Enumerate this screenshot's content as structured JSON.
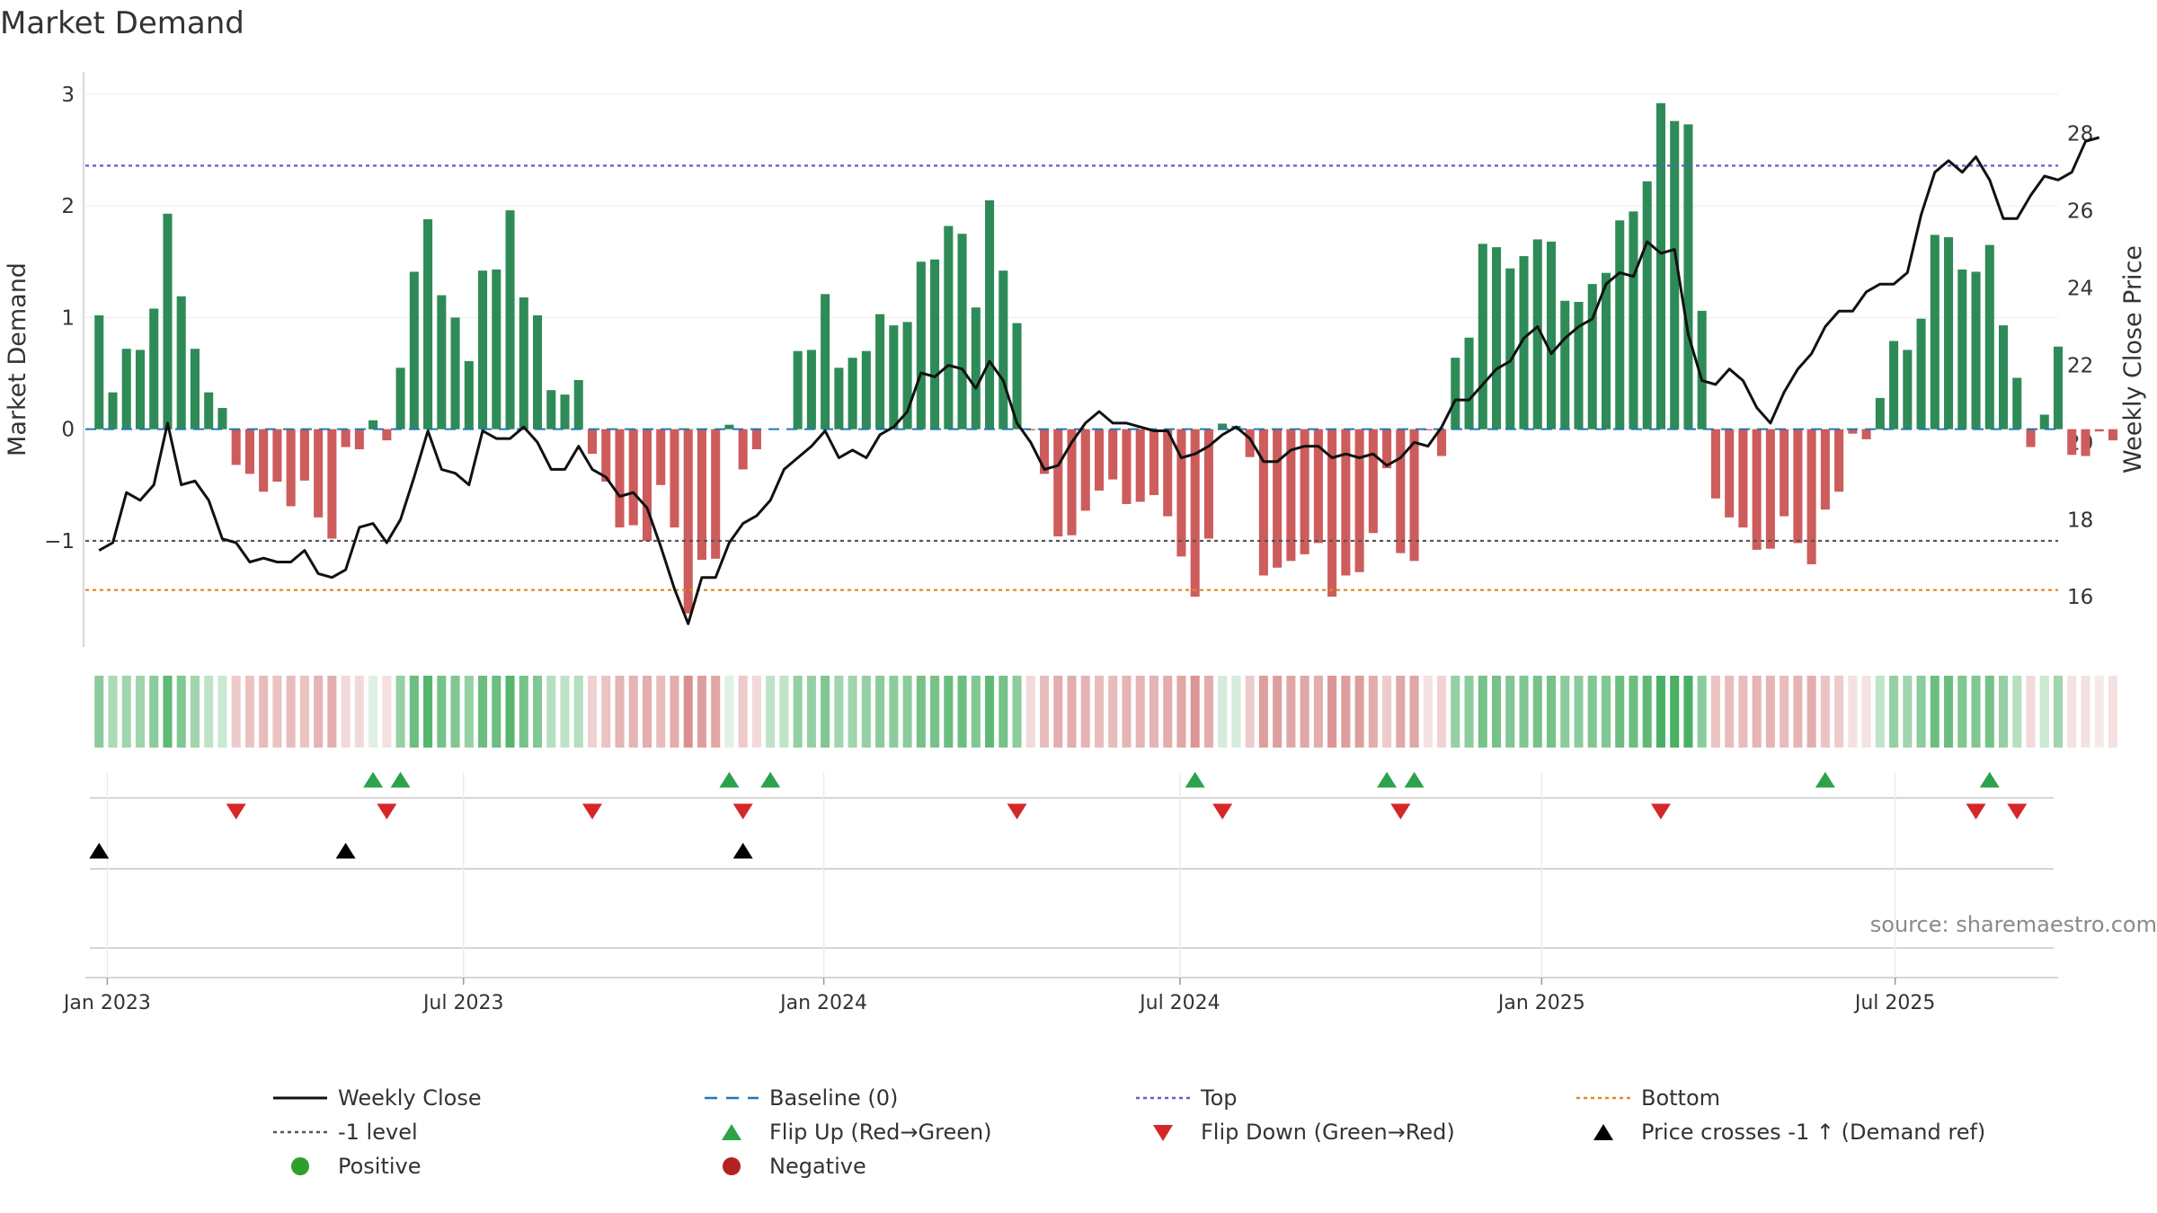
{
  "chart_data": {
    "type": "bar",
    "title": "Market Demand",
    "ylabel": "Market Demand",
    "y2label": "Weekly Close Price",
    "ylim": [
      -1.95,
      3.2
    ],
    "y2lim": [
      14.7,
      29.6
    ],
    "yticks": [
      -1,
      0,
      1,
      2,
      3
    ],
    "y2ticks": [
      16,
      18,
      20,
      22,
      24,
      26,
      28
    ],
    "xlim": [
      -1,
      143
    ],
    "xticks": [
      {
        "label": "Jan 2023",
        "x": 0.6
      },
      {
        "label": "Jul 2023",
        "x": 26.6
      },
      {
        "label": "Jan 2024",
        "x": 52.9
      },
      {
        "label": "Jul 2024",
        "x": 78.9
      },
      {
        "label": "Jan 2025",
        "x": 105.3
      },
      {
        "label": "Jul 2025",
        "x": 131.1
      }
    ],
    "reference_lines": {
      "top": 2.36,
      "bottom": -1.44,
      "minus_one": -1.0,
      "baseline": 0
    },
    "demand": [
      1.02,
      0.33,
      0.72,
      0.71,
      1.08,
      1.93,
      1.19,
      0.72,
      0.33,
      0.19,
      -0.32,
      -0.4,
      -0.56,
      -0.47,
      -0.69,
      -0.46,
      -0.79,
      -0.98,
      -0.16,
      -0.18,
      0.08,
      -0.1,
      0.55,
      1.41,
      1.88,
      1.2,
      1.0,
      0.61,
      1.42,
      1.43,
      1.96,
      1.18,
      1.02,
      0.35,
      0.31,
      0.44,
      -0.22,
      -0.47,
      -0.88,
      -0.86,
      -1.0,
      -0.5,
      -0.88,
      -1.65,
      -1.17,
      -1.16,
      0.04,
      -0.36,
      -0.18,
      0.0,
      0.0,
      0.7,
      0.71,
      1.21,
      0.55,
      0.64,
      0.7,
      1.03,
      0.93,
      0.96,
      1.5,
      1.52,
      1.82,
      1.75,
      1.09,
      2.05,
      1.42,
      0.95,
      -0.01,
      -0.4,
      -0.96,
      -0.95,
      -0.73,
      -0.55,
      -0.45,
      -0.67,
      -0.65,
      -0.59,
      -0.78,
      -1.14,
      -1.5,
      -0.98,
      0.05,
      0.03,
      -0.25,
      -1.31,
      -1.24,
      -1.18,
      -1.12,
      -1.02,
      -1.5,
      -1.31,
      -1.28,
      -0.93,
      -0.35,
      -1.11,
      -1.18,
      -0.01,
      -0.24,
      0.64,
      0.82,
      1.66,
      1.63,
      1.44,
      1.55,
      1.7,
      1.68,
      1.15,
      1.14,
      1.3,
      1.4,
      1.87,
      1.95,
      2.22,
      2.92,
      2.76,
      2.73,
      1.06,
      -0.62,
      -0.79,
      -0.88,
      -1.08,
      -1.07,
      -0.78,
      -1.02,
      -1.21,
      -0.72,
      -0.56,
      -0.04,
      -0.09,
      0.28,
      0.79,
      0.71,
      0.99,
      1.74,
      1.72,
      1.43,
      1.41,
      1.65,
      0.93,
      0.46,
      -0.16,
      0.13,
      0.74,
      -0.23,
      -0.24,
      -0.02,
      -0.1
    ],
    "weekly_close": [
      17.2,
      17.4,
      18.7,
      18.5,
      18.9,
      20.5,
      18.9,
      19.0,
      18.5,
      17.5,
      17.4,
      16.9,
      17.0,
      16.9,
      16.9,
      17.2,
      16.6,
      16.5,
      16.7,
      17.8,
      17.9,
      17.4,
      18.0,
      19.1,
      20.3,
      19.3,
      19.2,
      18.9,
      20.3,
      20.1,
      20.1,
      20.4,
      20.0,
      19.3,
      19.3,
      19.9,
      19.3,
      19.1,
      18.6,
      18.7,
      18.3,
      17.3,
      16.2,
      15.3,
      16.5,
      16.5,
      17.4,
      17.9,
      18.1,
      18.5,
      19.3,
      19.6,
      19.9,
      20.3,
      19.6,
      19.8,
      19.6,
      20.2,
      20.4,
      20.8,
      21.8,
      21.7,
      22.0,
      21.9,
      21.4,
      22.1,
      21.6,
      20.5,
      20.0,
      19.3,
      19.4,
      20.0,
      20.5,
      20.8,
      20.5,
      20.5,
      20.4,
      20.3,
      20.3,
      19.6,
      19.7,
      19.9,
      20.2,
      20.4,
      20.1,
      19.5,
      19.5,
      19.8,
      19.9,
      19.9,
      19.6,
      19.7,
      19.6,
      19.7,
      19.4,
      19.6,
      20.0,
      19.9,
      20.4,
      21.1,
      21.1,
      21.5,
      21.9,
      22.1,
      22.7,
      23.0,
      22.3,
      22.7,
      23.0,
      23.2,
      24.1,
      24.4,
      24.3,
      25.2,
      24.9,
      25.0,
      22.8,
      21.6,
      21.5,
      21.9,
      21.6,
      20.9,
      20.5,
      21.3,
      21.9,
      22.3,
      23.0,
      23.4,
      23.4,
      23.9,
      24.1,
      24.1,
      24.4,
      25.9,
      27.0,
      27.3,
      27.0,
      27.4,
      26.8,
      25.8,
      25.8,
      26.4,
      26.9,
      26.8,
      27.0,
      27.8,
      27.9
    ],
    "heat_intensity": [
      0.55,
      0.4,
      0.45,
      0.45,
      0.55,
      0.75,
      0.6,
      0.45,
      0.3,
      0.25,
      0.35,
      0.4,
      0.45,
      0.4,
      0.45,
      0.4,
      0.5,
      0.55,
      0.25,
      0.25,
      0.15,
      0.2,
      0.5,
      0.7,
      0.8,
      0.65,
      0.6,
      0.5,
      0.7,
      0.7,
      0.8,
      0.65,
      0.6,
      0.35,
      0.3,
      0.35,
      0.3,
      0.4,
      0.5,
      0.5,
      0.55,
      0.45,
      0.55,
      0.75,
      0.65,
      0.6,
      0.15,
      0.35,
      0.25,
      0.3,
      0.3,
      0.5,
      0.5,
      0.6,
      0.45,
      0.45,
      0.5,
      0.55,
      0.55,
      0.55,
      0.65,
      0.65,
      0.7,
      0.7,
      0.6,
      0.75,
      0.65,
      0.55,
      0.25,
      0.45,
      0.55,
      0.55,
      0.5,
      0.45,
      0.45,
      0.5,
      0.5,
      0.5,
      0.55,
      0.6,
      0.7,
      0.55,
      0.2,
      0.2,
      0.35,
      0.65,
      0.65,
      0.6,
      0.6,
      0.55,
      0.7,
      0.65,
      0.65,
      0.55,
      0.35,
      0.6,
      0.6,
      0.2,
      0.3,
      0.5,
      0.55,
      0.65,
      0.65,
      0.6,
      0.6,
      0.65,
      0.65,
      0.55,
      0.55,
      0.6,
      0.6,
      0.7,
      0.7,
      0.75,
      0.85,
      0.85,
      0.85,
      0.55,
      0.4,
      0.45,
      0.45,
      0.5,
      0.5,
      0.45,
      0.5,
      0.55,
      0.4,
      0.35,
      0.2,
      0.2,
      0.3,
      0.5,
      0.45,
      0.55,
      0.7,
      0.7,
      0.6,
      0.6,
      0.65,
      0.5,
      0.35,
      0.25,
      0.25,
      0.45,
      0.2,
      0.2,
      0.15,
      0.2
    ],
    "flip_up": [
      20,
      22,
      46,
      49,
      80,
      94,
      96,
      126,
      138
    ],
    "flip_down": [
      10,
      21,
      36,
      47,
      67,
      82,
      95,
      114,
      137,
      140
    ],
    "price_cross": [
      0,
      18,
      47
    ],
    "legend": [
      {
        "label": "Weekly Close",
        "kind": "line-solid",
        "color": "#111111"
      },
      {
        "label": "Baseline (0)",
        "kind": "line-dash",
        "color": "#1f77b4"
      },
      {
        "label": "Top",
        "kind": "line-dot",
        "color": "#6a5acd"
      },
      {
        "label": "Bottom",
        "kind": "line-dot",
        "color": "#e08a1e"
      },
      {
        "label": "-1 level",
        "kind": "line-dot",
        "color": "#555555"
      },
      {
        "label": "Flip Up (Red→Green)",
        "kind": "tri-up",
        "color": "#2ca24a"
      },
      {
        "label": "Flip Down (Green→Red)",
        "kind": "tri-down",
        "color": "#d62728"
      },
      {
        "label": "Price crosses -1 ↑ (Demand ref)",
        "kind": "tri-up",
        "color": "#000000"
      },
      {
        "label": "Positive",
        "kind": "dot",
        "color": "#2ca02c"
      },
      {
        "label": "Negative",
        "kind": "dot",
        "color": "#b22222"
      }
    ],
    "colors": {
      "positive": "#2e8b57",
      "negative": "#cd5c5c",
      "heat_pos": "#2ca24a",
      "heat_neg": "#cd6a6a"
    },
    "source": "source: sharemaestro.com"
  }
}
